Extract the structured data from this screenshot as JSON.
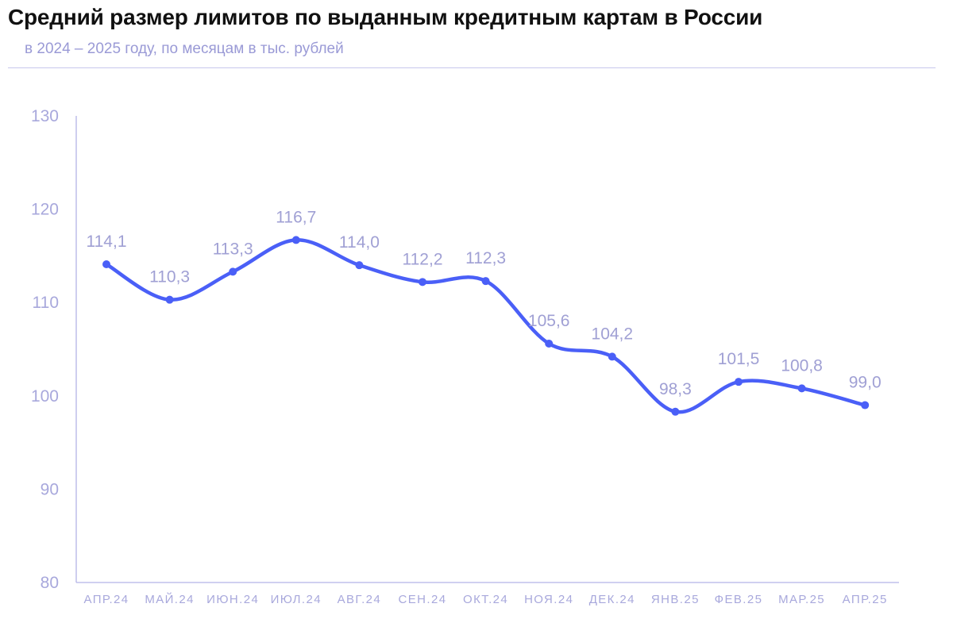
{
  "title": "Средний размер лимитов по выданным кредитным картам в России",
  "subtitle": "в 2024 – 2025 году, по месяцам в тыс. рублей",
  "colors": {
    "line": "#4a5ff7",
    "axis": "#b4b4e6",
    "text": "#a8a8dc",
    "title": "#111111"
  },
  "chart_data": {
    "type": "line",
    "title": "Средний размер лимитов по выданным кредитным картам в России",
    "subtitle": "в 2024 – 2025 году, по месяцам в тыс. рублей",
    "categories": [
      "АПР.24",
      "МАЙ.24",
      "ИЮН.24",
      "ИЮЛ.24",
      "АВГ.24",
      "СЕН.24",
      "ОКТ.24",
      "НОЯ.24",
      "ДЕК.24",
      "ЯНВ.25",
      "ФЕВ.25",
      "МАР.25",
      "АПР.25"
    ],
    "values": [
      114.1,
      110.3,
      113.3,
      116.7,
      114.0,
      112.2,
      112.3,
      105.6,
      104.2,
      98.3,
      101.5,
      100.8,
      99.0
    ],
    "value_labels": [
      "114,1",
      "110,3",
      "113,3",
      "116,7",
      "114,0",
      "112,2",
      "112,3",
      "105,6",
      "104,2",
      "98,3",
      "101,5",
      "100,8",
      "99,0"
    ],
    "yticks": [
      80,
      90,
      100,
      110,
      120,
      130
    ],
    "ylim": [
      80,
      130
    ],
    "xlabel": "",
    "ylabel": "",
    "grid": false,
    "legend": "none"
  }
}
